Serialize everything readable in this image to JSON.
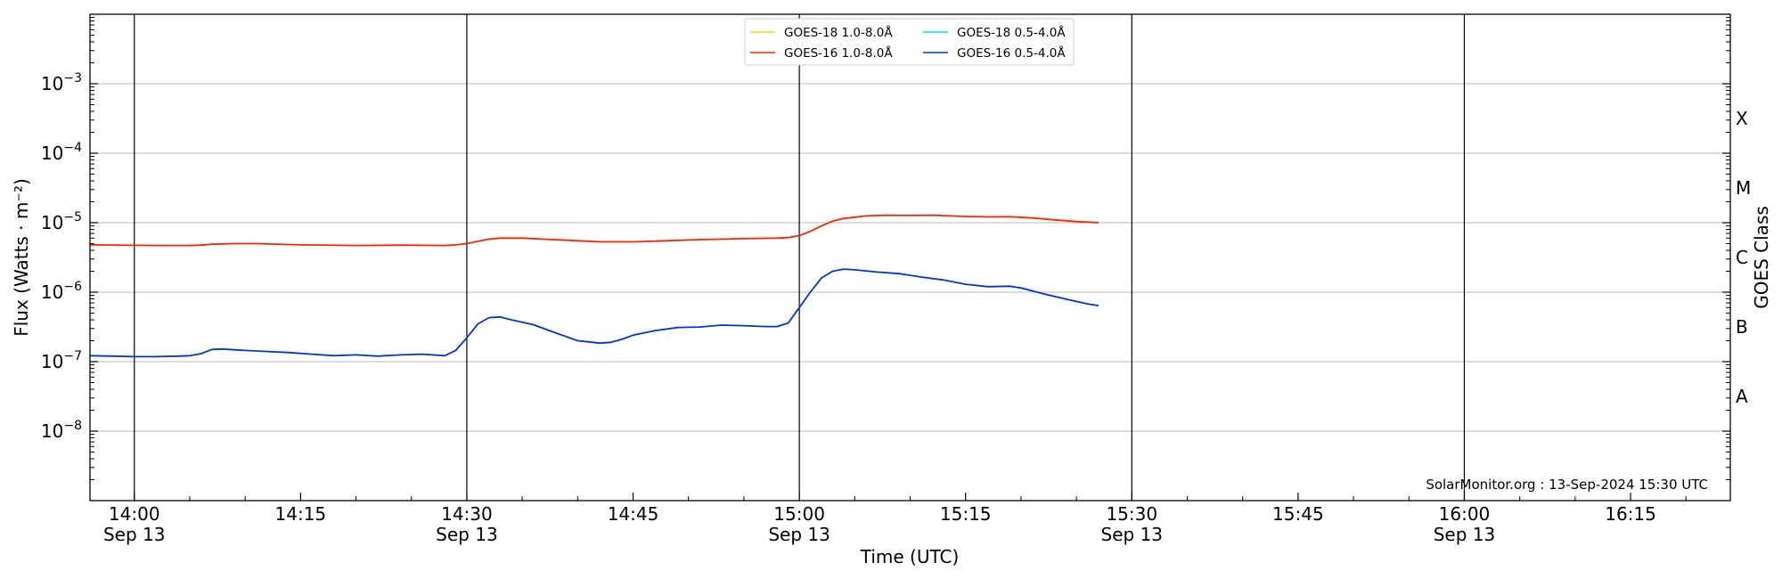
{
  "chart_data": {
    "type": "line",
    "title": "",
    "xlabel": "Time (UTC)",
    "ylabel": "Flux (Watts · m⁻²)",
    "y2label": "GOES Class",
    "yscale": "log",
    "ylim": [
      1e-09,
      0.01
    ],
    "xlim": [
      "2024-09-13 13:56",
      "2024-09-13 16:24"
    ],
    "grid": "horizontal at each decade",
    "legend_position": "top-center",
    "credit": "SolarMonitor.org : 13-Sep-2024 15:30 UTC",
    "yticks": [
      {
        "value": 0.001,
        "base": "10",
        "exp": "−3"
      },
      {
        "value": 0.0001,
        "base": "10",
        "exp": "−4"
      },
      {
        "value": 1e-05,
        "base": "10",
        "exp": "−5"
      },
      {
        "value": 1e-06,
        "base": "10",
        "exp": "−6"
      },
      {
        "value": 1e-07,
        "base": "10",
        "exp": "−7"
      },
      {
        "value": 1e-08,
        "base": "10",
        "exp": "−8"
      }
    ],
    "xticks": [
      {
        "time": "14:00",
        "label": "14:00",
        "date": "Sep 13"
      },
      {
        "time": "14:15",
        "label": "14:15",
        "date": ""
      },
      {
        "time": "14:30",
        "label": "14:30",
        "date": "Sep 13"
      },
      {
        "time": "14:45",
        "label": "14:45",
        "date": ""
      },
      {
        "time": "15:00",
        "label": "15:00",
        "date": "Sep 13"
      },
      {
        "time": "15:15",
        "label": "15:15",
        "date": ""
      },
      {
        "time": "15:30",
        "label": "15:30",
        "date": "Sep 13"
      },
      {
        "time": "15:45",
        "label": "15:45",
        "date": ""
      },
      {
        "time": "16:00",
        "label": "16:00",
        "date": "Sep 13"
      },
      {
        "time": "16:15",
        "label": "16:15",
        "date": ""
      }
    ],
    "goes_classes": [
      {
        "label": "X",
        "center": 0.000316
      },
      {
        "label": "M",
        "center": 3.16e-05
      },
      {
        "label": "C",
        "center": 3.16e-06
      },
      {
        "label": "B",
        "center": 3.16e-07
      },
      {
        "label": "A",
        "center": 3.16e-08
      }
    ],
    "series": [
      {
        "name": "GOES-18 1.0-8.0Å",
        "color": "#ffd700",
        "x": [],
        "y": []
      },
      {
        "name": "GOES-18 0.5-4.0Å",
        "color": "#00e5ee",
        "x": [],
        "y": []
      },
      {
        "name": "GOES-16 1.0-8.0Å",
        "color": "#ff2200",
        "x": [
          "13:56",
          "14:02",
          "14:05",
          "14:06",
          "14:07",
          "14:09",
          "14:11",
          "14:15",
          "14:20",
          "14:24",
          "14:28",
          "14:29",
          "14:30",
          "14:31",
          "14:32",
          "14:33",
          "14:35",
          "14:37",
          "14:40",
          "14:42",
          "14:45",
          "14:48",
          "14:51",
          "14:55",
          "14:58",
          "14:59",
          "15:00",
          "15:01",
          "15:02",
          "15:03",
          "15:04",
          "15:06",
          "15:08",
          "15:10",
          "15:12",
          "15:15",
          "15:17",
          "15:19",
          "15:21",
          "15:23",
          "15:25",
          "15:27"
        ],
        "y": [
          4.8e-06,
          4.7e-06,
          4.7e-06,
          4.75e-06,
          4.9e-06,
          5e-06,
          5e-06,
          4.8e-06,
          4.7e-06,
          4.75e-06,
          4.7e-06,
          4.8e-06,
          5e-06,
          5.4e-06,
          5.8e-06,
          6e-06,
          6e-06,
          5.8e-06,
          5.5e-06,
          5.3e-06,
          5.3e-06,
          5.5e-06,
          5.7e-06,
          5.9e-06,
          6e-06,
          6.1e-06,
          6.5e-06,
          7.5e-06,
          9e-06,
          1.05e-05,
          1.15e-05,
          1.25e-05,
          1.28e-05,
          1.27e-05,
          1.28e-05,
          1.23e-05,
          1.21e-05,
          1.22e-05,
          1.17e-05,
          1.1e-05,
          1.04e-05,
          1e-05
        ]
      },
      {
        "name": "GOES-16 0.5-4.0Å",
        "color": "#0033dd",
        "x": [
          "13:56",
          "13:58",
          "14:00",
          "14:02",
          "14:04",
          "14:05",
          "14:06",
          "14:07",
          "14:08",
          "14:09",
          "14:10",
          "14:12",
          "14:14",
          "14:16",
          "14:18",
          "14:20",
          "14:22",
          "14:24",
          "14:26",
          "14:28",
          "14:29",
          "14:30",
          "14:31",
          "14:32",
          "14:33",
          "14:34",
          "14:36",
          "14:38",
          "14:40",
          "14:42",
          "14:43",
          "14:44",
          "14:45",
          "14:47",
          "14:49",
          "14:51",
          "14:53",
          "14:55",
          "14:57",
          "14:58",
          "14:59",
          "15:00",
          "15:01",
          "15:02",
          "15:03",
          "15:04",
          "15:05",
          "15:07",
          "15:09",
          "15:11",
          "15:13",
          "15:15",
          "15:17",
          "15:19",
          "15:20",
          "15:22",
          "15:24",
          "15:26",
          "15:27"
        ],
        "y": [
          1.22e-07,
          1.2e-07,
          1.18e-07,
          1.18e-07,
          1.2e-07,
          1.22e-07,
          1.3e-07,
          1.5e-07,
          1.52e-07,
          1.48e-07,
          1.45e-07,
          1.4e-07,
          1.35e-07,
          1.28e-07,
          1.22e-07,
          1.25e-07,
          1.2e-07,
          1.25e-07,
          1.28e-07,
          1.22e-07,
          1.45e-07,
          2.2e-07,
          3.5e-07,
          4.3e-07,
          4.4e-07,
          4e-07,
          3.4e-07,
          2.6e-07,
          2e-07,
          1.85e-07,
          1.9e-07,
          2.1e-07,
          2.4e-07,
          2.8e-07,
          3.1e-07,
          3.15e-07,
          3.35e-07,
          3.3e-07,
          3.2e-07,
          3.2e-07,
          3.6e-07,
          6e-07,
          1e-06,
          1.6e-06,
          2e-06,
          2.15e-06,
          2.1e-06,
          1.95e-06,
          1.85e-06,
          1.65e-06,
          1.5e-06,
          1.3e-06,
          1.2e-06,
          1.22e-06,
          1.15e-06,
          9.5e-07,
          8e-07,
          6.8e-07,
          6.4e-07
        ]
      }
    ]
  }
}
